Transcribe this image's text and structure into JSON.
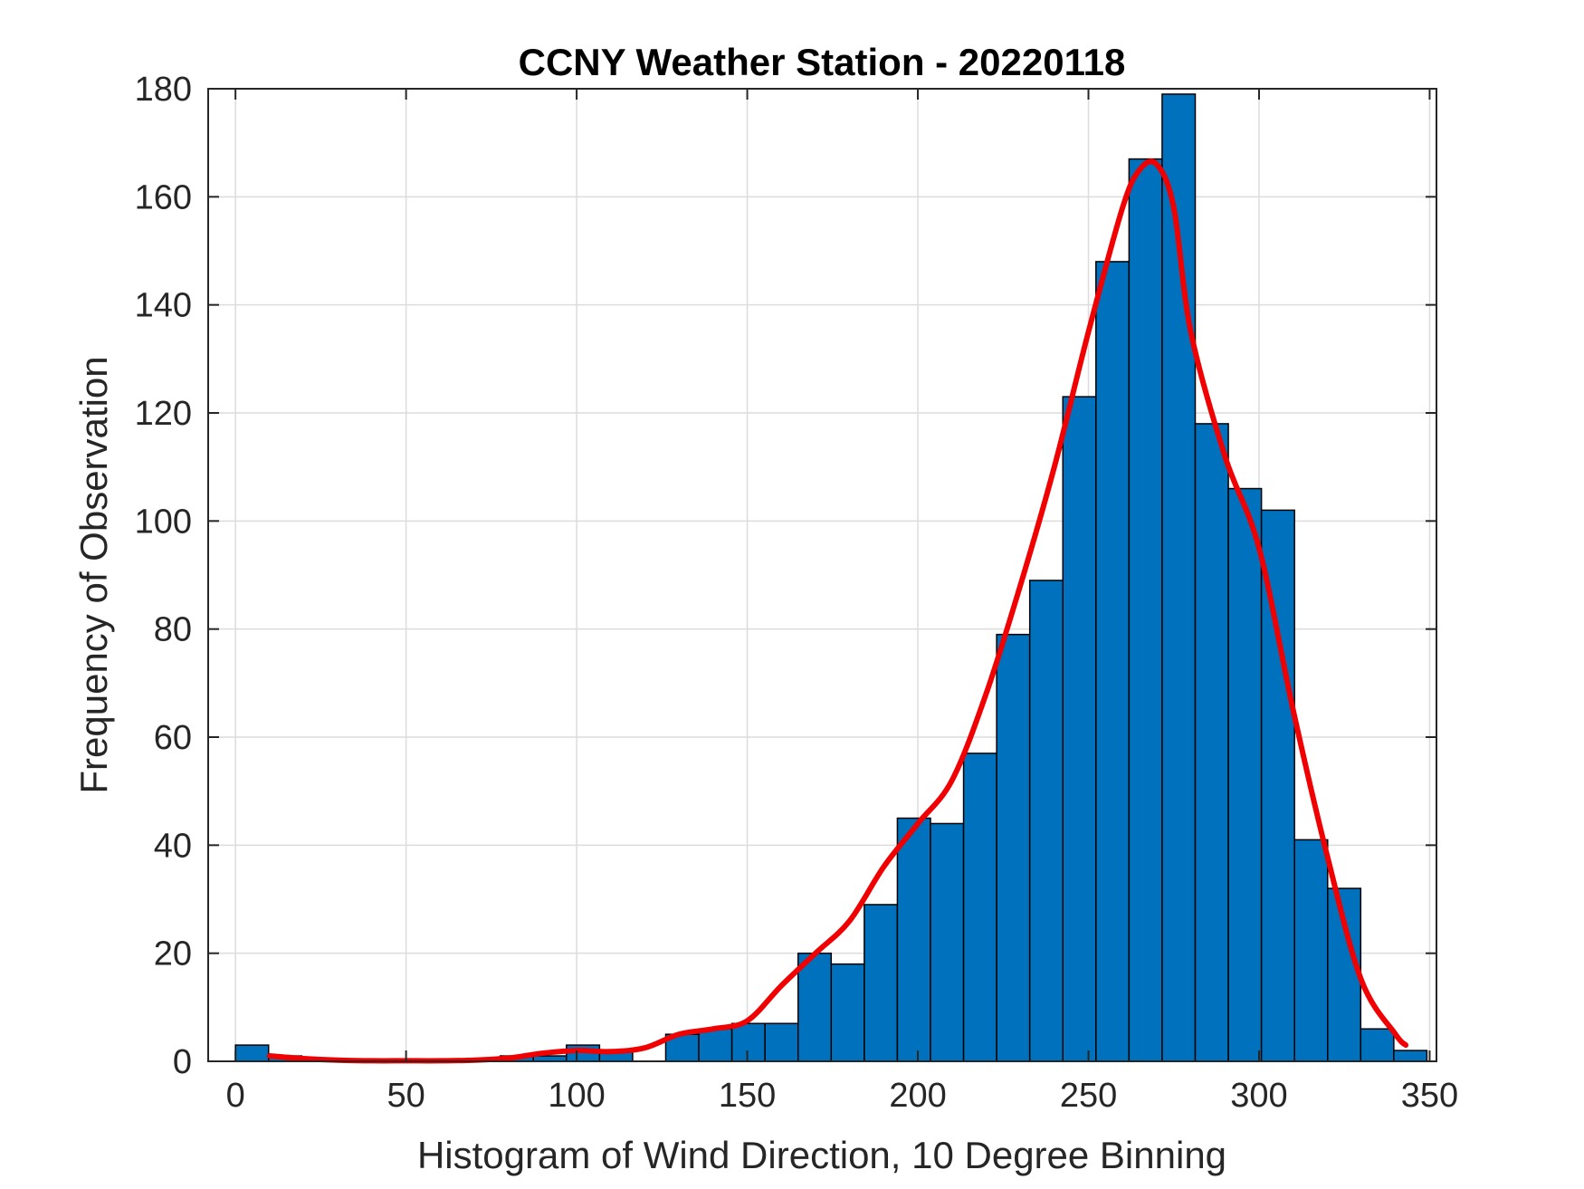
{
  "chart_data": {
    "type": "bar",
    "title": "CCNY Weather Station - 20220118",
    "xlabel": "Histogram of Wind Direction, 10 Degree Binning",
    "ylabel": "Frequency of Observation",
    "xlim": [
      -8,
      352
    ],
    "ylim": [
      0,
      180
    ],
    "x_ticks": [
      0,
      50,
      100,
      150,
      200,
      250,
      300,
      350
    ],
    "y_ticks": [
      0,
      20,
      40,
      60,
      80,
      100,
      120,
      140,
      160,
      180
    ],
    "grid": true,
    "bin_width": 9.7,
    "bin_edges_start": 0,
    "values": [
      3,
      1,
      0,
      0,
      0,
      0,
      0,
      0,
      1,
      1,
      3,
      2,
      0,
      5,
      6,
      7,
      7,
      20,
      18,
      29,
      45,
      44,
      57,
      79,
      89,
      123,
      148,
      167,
      179,
      118,
      106,
      102,
      41,
      32,
      6,
      2
    ],
    "fit_curve": {
      "x": [
        10,
        20,
        30,
        40,
        50,
        60,
        70,
        80,
        90,
        100,
        110,
        120,
        130,
        140,
        150,
        160,
        170,
        180,
        190,
        200,
        210,
        220,
        230,
        240,
        250,
        260,
        265,
        270,
        275,
        280,
        290,
        300,
        310,
        320,
        330,
        340,
        343
      ],
      "y": [
        1,
        0.5,
        0.2,
        0.1,
        0.1,
        0.1,
        0.2,
        0.6,
        1.5,
        2,
        1.8,
        2.5,
        5,
        6,
        7.5,
        14,
        20,
        26,
        36,
        44,
        52,
        68,
        88,
        110,
        135,
        158,
        165,
        166,
        158,
        135,
        112,
        95,
        65,
        38,
        15,
        5,
        3
      ]
    },
    "colors": {
      "bar_fill": "#0072BD",
      "bar_edge": "#000000",
      "curve": "#F00000",
      "grid": "#DCDCDC",
      "axes": "#262626"
    }
  }
}
